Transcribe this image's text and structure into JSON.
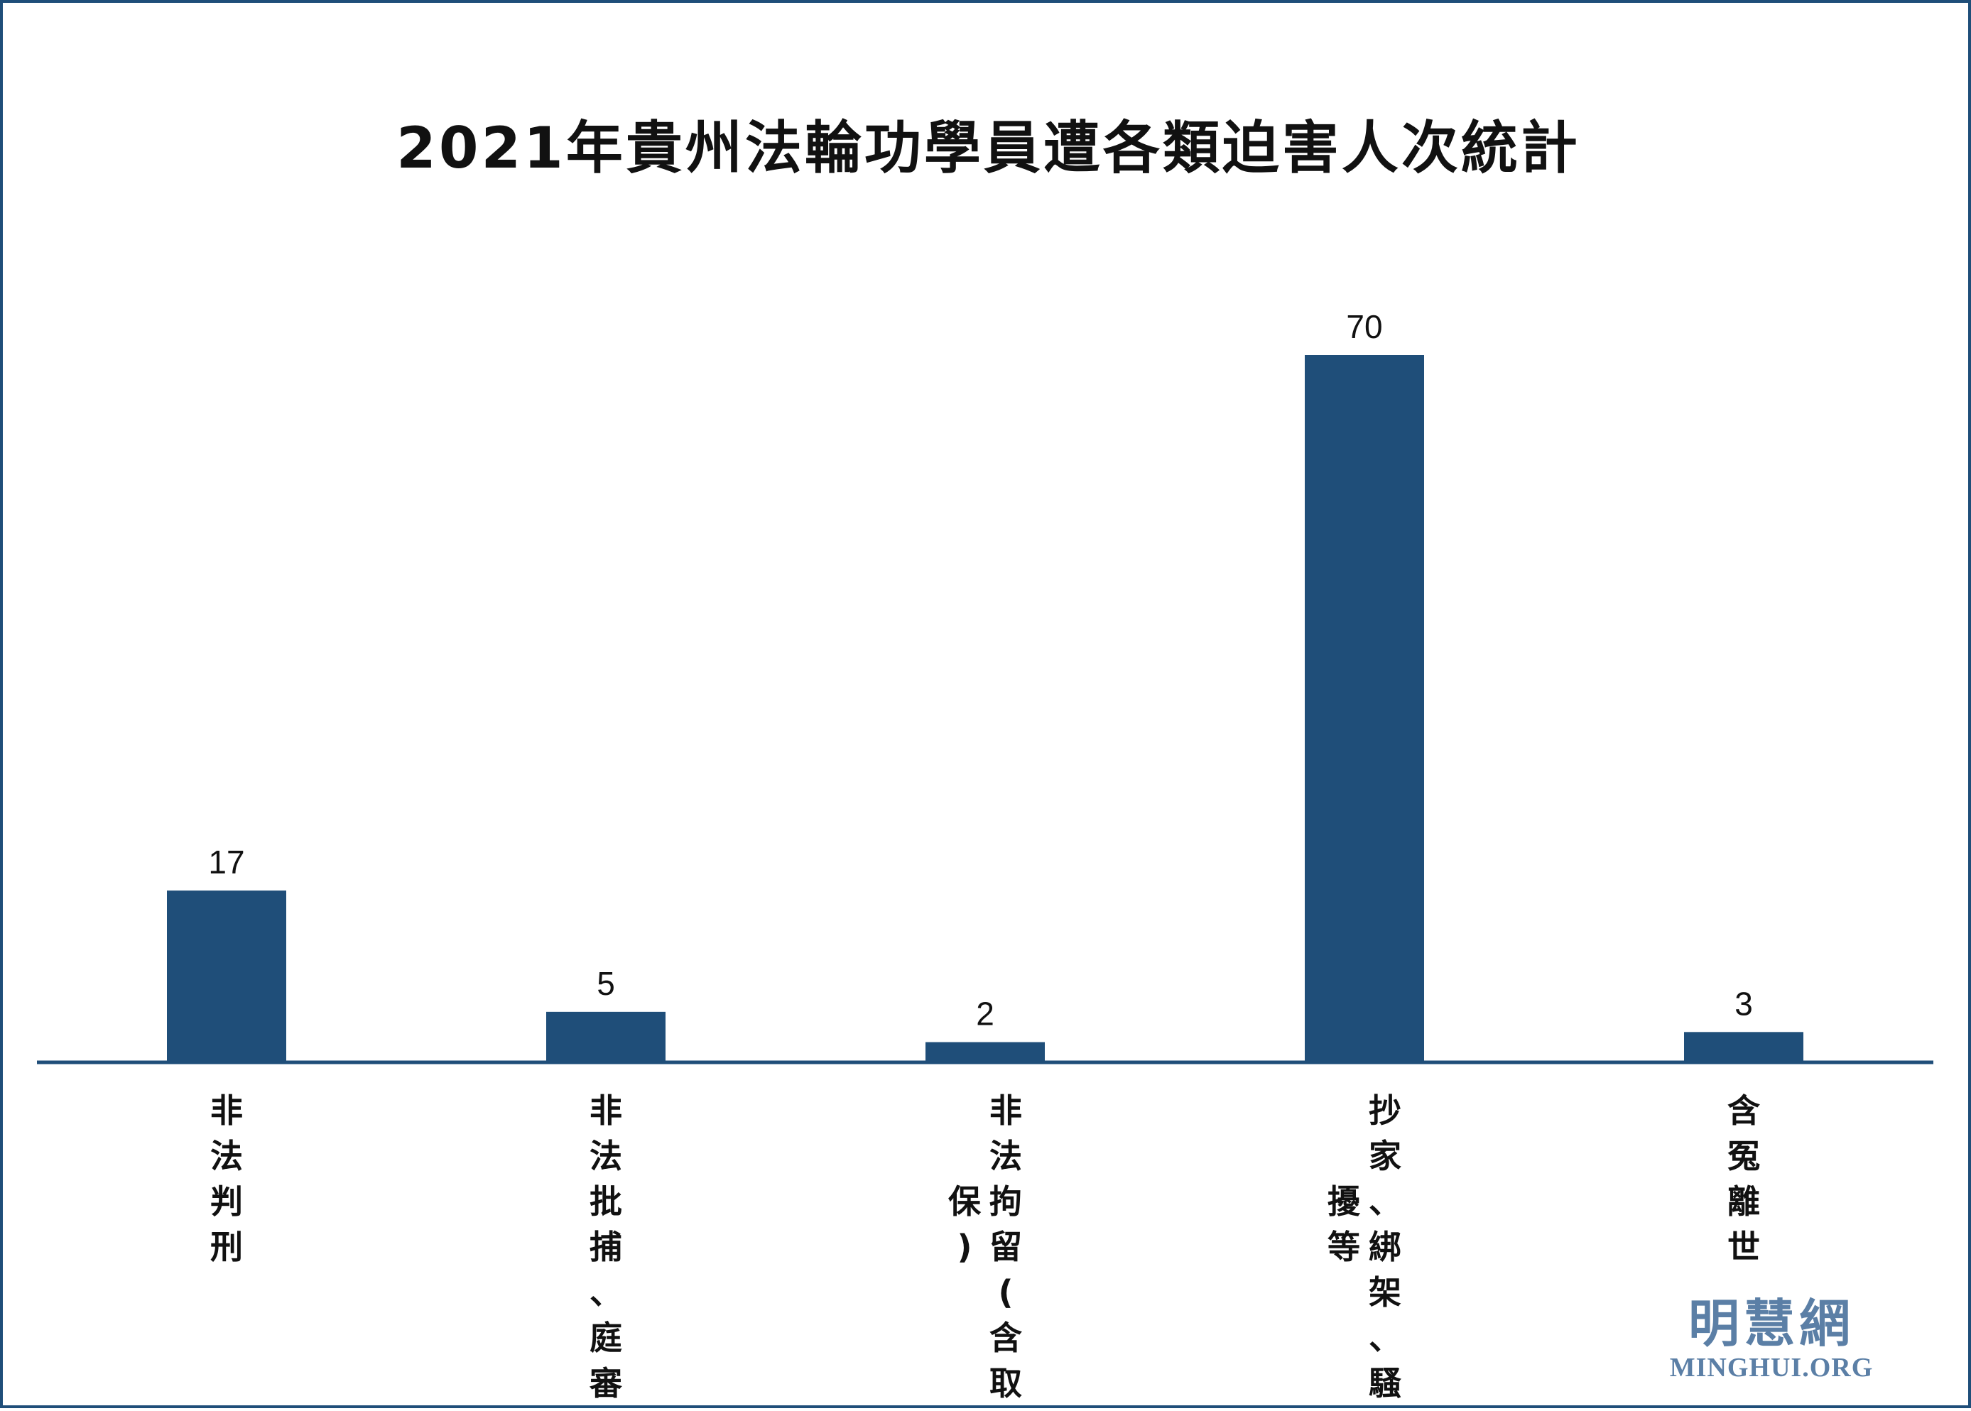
{
  "chart_data": {
    "type": "bar",
    "title": "2021年貴州法輪功學員遭各類迫害人次統計",
    "categories": [
      "非法判刑",
      "非法批捕、庭審",
      "非法拘留(含取保)",
      "抄家、綁架、騷擾等",
      "含冤離世"
    ],
    "values": [
      17,
      5,
      2,
      70,
      3
    ],
    "ylim": [
      0,
      70
    ],
    "grid": false,
    "legend": "none",
    "bar_color": "#1f4e79"
  },
  "logo": {
    "cn": "明慧網",
    "en": "MINGHUI.ORG"
  }
}
